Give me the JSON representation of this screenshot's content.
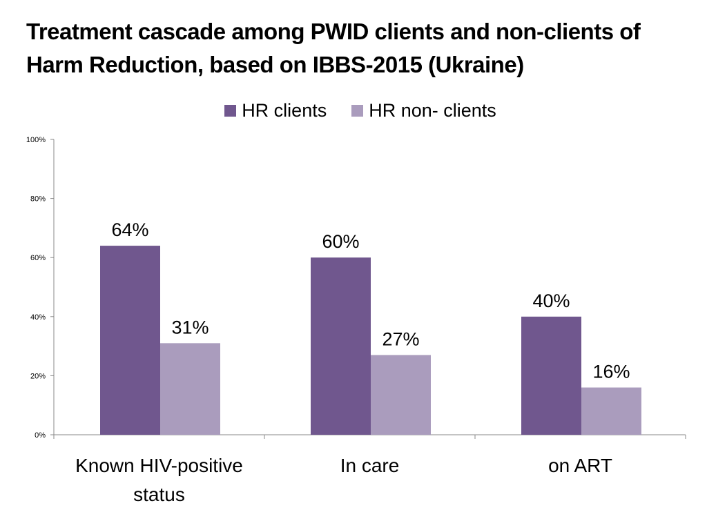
{
  "chart_data": {
    "type": "bar",
    "title": "Treatment cascade among PWID clients and non-clients of Harm Reduction, based on IBBS-2015 (Ukraine)",
    "categories": [
      [
        "Known HIV-positive",
        "status"
      ],
      [
        "In care"
      ],
      [
        "on ART"
      ]
    ],
    "series": [
      {
        "name": "HR clients",
        "values": [
          64,
          60,
          40
        ],
        "labels": [
          "64%",
          "60%",
          "40%"
        ],
        "color": "#70578e"
      },
      {
        "name": "HR non- clients",
        "values": [
          31,
          27,
          16
        ],
        "labels": [
          "31%",
          "27%",
          "16%"
        ],
        "color": "#aa9cbd"
      }
    ],
    "yticks": [
      "0%",
      "20%",
      "40%",
      "60%",
      "80%",
      "100%"
    ],
    "ylim": [
      0,
      100
    ],
    "xlabel": "",
    "ylabel": "",
    "legend_position": "top-center",
    "grid": false
  }
}
